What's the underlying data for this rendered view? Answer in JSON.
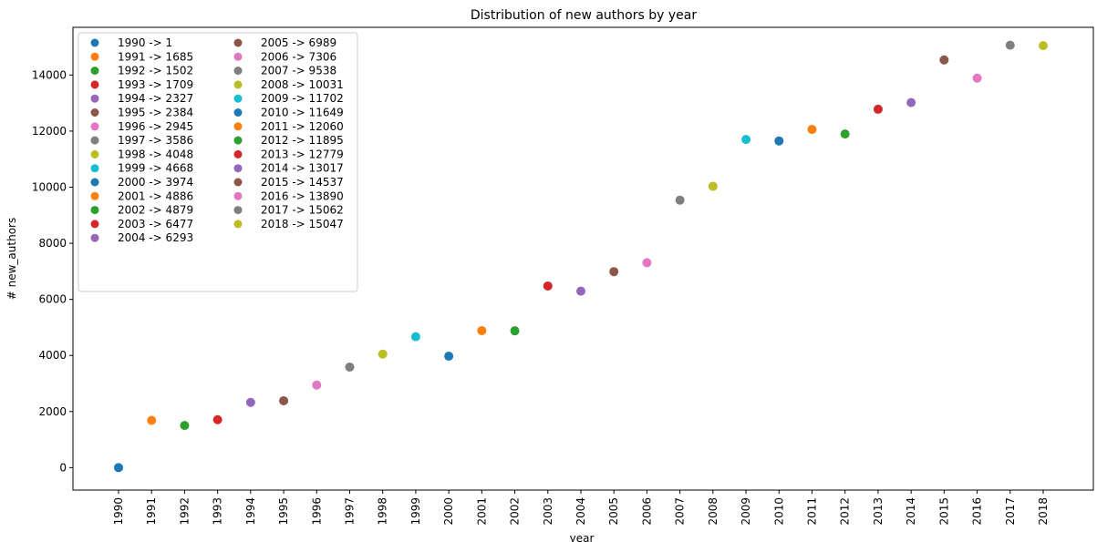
{
  "chart_data": {
    "type": "scatter",
    "title": "Distribution of new authors by year",
    "xlabel": "year",
    "ylabel": "# new_authors",
    "ylim": [
      -800,
      15700
    ],
    "yticks": [
      0,
      2000,
      4000,
      6000,
      8000,
      10000,
      12000,
      14000
    ],
    "grid": false,
    "legend_position": "top-left",
    "legend_columns": 2,
    "points": [
      {
        "x": "1990",
        "y": 1,
        "label": "1990 -> 1",
        "color": "#1f77b4"
      },
      {
        "x": "1991",
        "y": 1685,
        "label": "1991 -> 1685",
        "color": "#ff7f0e"
      },
      {
        "x": "1992",
        "y": 1502,
        "label": "1992 -> 1502",
        "color": "#2ca02c"
      },
      {
        "x": "1993",
        "y": 1709,
        "label": "1993 -> 1709",
        "color": "#d62728"
      },
      {
        "x": "1994",
        "y": 2327,
        "label": "1994 -> 2327",
        "color": "#9467bd"
      },
      {
        "x": "1995",
        "y": 2384,
        "label": "1995 -> 2384",
        "color": "#8c564b"
      },
      {
        "x": "1996",
        "y": 2945,
        "label": "1996 -> 2945",
        "color": "#e377c2"
      },
      {
        "x": "1997",
        "y": 3586,
        "label": "1997 -> 3586",
        "color": "#7f7f7f"
      },
      {
        "x": "1998",
        "y": 4048,
        "label": "1998 -> 4048",
        "color": "#bcbd22"
      },
      {
        "x": "1999",
        "y": 4668,
        "label": "1999 -> 4668",
        "color": "#17becf"
      },
      {
        "x": "2000",
        "y": 3974,
        "label": "2000 -> 3974",
        "color": "#1f77b4"
      },
      {
        "x": "2001",
        "y": 4886,
        "label": "2001 -> 4886",
        "color": "#ff7f0e"
      },
      {
        "x": "2002",
        "y": 4879,
        "label": "2002 -> 4879",
        "color": "#2ca02c"
      },
      {
        "x": "2003",
        "y": 6477,
        "label": "2003 -> 6477",
        "color": "#d62728"
      },
      {
        "x": "2004",
        "y": 6293,
        "label": "2004 -> 6293",
        "color": "#9467bd"
      },
      {
        "x": "2005",
        "y": 6989,
        "label": "2005 -> 6989",
        "color": "#8c564b"
      },
      {
        "x": "2006",
        "y": 7306,
        "label": "2006 -> 7306",
        "color": "#e377c2"
      },
      {
        "x": "2007",
        "y": 9538,
        "label": "2007 -> 9538",
        "color": "#7f7f7f"
      },
      {
        "x": "2008",
        "y": 10031,
        "label": "2008 -> 10031",
        "color": "#bcbd22"
      },
      {
        "x": "2009",
        "y": 11702,
        "label": "2009 -> 11702",
        "color": "#17becf"
      },
      {
        "x": "2010",
        "y": 11649,
        "label": "2010 -> 11649",
        "color": "#1f77b4"
      },
      {
        "x": "2011",
        "y": 12060,
        "label": "2011 -> 12060",
        "color": "#ff7f0e"
      },
      {
        "x": "2012",
        "y": 11895,
        "label": "2012 -> 11895",
        "color": "#2ca02c"
      },
      {
        "x": "2013",
        "y": 12779,
        "label": "2013 -> 12779",
        "color": "#d62728"
      },
      {
        "x": "2014",
        "y": 13017,
        "label": "2014 -> 13017",
        "color": "#9467bd"
      },
      {
        "x": "2015",
        "y": 14537,
        "label": "2015 -> 14537",
        "color": "#8c564b"
      },
      {
        "x": "2016",
        "y": 13890,
        "label": "2016 -> 13890",
        "color": "#e377c2"
      },
      {
        "x": "2017",
        "y": 15062,
        "label": "2017 -> 15062",
        "color": "#7f7f7f"
      },
      {
        "x": "2018",
        "y": 15047,
        "label": "2018 -> 15047",
        "color": "#bcbd22"
      }
    ]
  }
}
